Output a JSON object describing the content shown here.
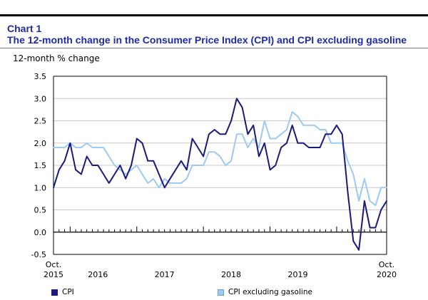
{
  "header": {
    "chart_number": "Chart 1",
    "title": "The 12-month change in the Consumer Price Index (CPI) and CPI excluding gasoline"
  },
  "chart_data": {
    "type": "line",
    "ylabel": "12-month % change",
    "ylim": [
      -0.5,
      3.5
    ],
    "yticks": [
      "3.5",
      "3.0",
      "2.5",
      "2.0",
      "1.5",
      "1.0",
      "0.5",
      "0.0",
      "-0.5"
    ],
    "ytick_values": [
      3.5,
      3.0,
      2.5,
      2.0,
      1.5,
      1.0,
      0.5,
      0.0,
      -0.5
    ],
    "x_start": "2015-10",
    "x_end": "2020-10",
    "xtick_labels": [
      {
        "month": "2015-10",
        "line1": "Oct.",
        "line2": "2015"
      },
      {
        "month": "2016-06",
        "line1": "",
        "line2": "2016"
      },
      {
        "month": "2017-06",
        "line1": "",
        "line2": "2017"
      },
      {
        "month": "2018-06",
        "line1": "",
        "line2": "2018"
      },
      {
        "month": "2019-06",
        "line1": "",
        "line2": "2019"
      },
      {
        "month": "2020-10",
        "line1": "Oct.",
        "line2": "2020"
      }
    ],
    "grid": "horizontal",
    "legend_position": "bottom",
    "series": [
      {
        "name": "CPI",
        "color": "#1a1a7e",
        "values": [
          1.0,
          1.4,
          1.6,
          2.0,
          1.4,
          1.3,
          1.7,
          1.5,
          1.5,
          1.3,
          1.1,
          1.3,
          1.5,
          1.2,
          1.5,
          2.1,
          2.0,
          1.6,
          1.6,
          1.3,
          1.0,
          1.2,
          1.4,
          1.6,
          1.4,
          2.1,
          1.9,
          1.7,
          2.2,
          2.3,
          2.2,
          2.2,
          2.5,
          3.0,
          2.8,
          2.2,
          2.4,
          1.7,
          2.0,
          1.4,
          1.5,
          1.9,
          2.0,
          2.4,
          2.0,
          2.0,
          1.9,
          1.9,
          1.9,
          2.2,
          2.2,
          2.4,
          2.2,
          0.9,
          -0.2,
          -0.4,
          0.7,
          0.1,
          0.1,
          0.5,
          0.7
        ]
      },
      {
        "name": "CPI excluding gasoline",
        "color": "#9dc9f5",
        "values": [
          1.9,
          1.9,
          1.9,
          2.0,
          1.9,
          1.9,
          2.0,
          1.9,
          1.9,
          1.9,
          1.7,
          1.5,
          1.4,
          1.3,
          1.4,
          1.5,
          1.3,
          1.1,
          1.2,
          1.0,
          1.2,
          1.1,
          1.1,
          1.1,
          1.2,
          1.5,
          1.5,
          1.5,
          1.8,
          1.8,
          1.7,
          1.5,
          1.6,
          2.2,
          2.2,
          1.9,
          2.1,
          1.9,
          2.5,
          2.1,
          2.1,
          2.2,
          2.3,
          2.7,
          2.6,
          2.4,
          2.4,
          2.4,
          2.3,
          2.3,
          2.0,
          2.0,
          2.0,
          1.6,
          1.3,
          0.7,
          1.2,
          0.7,
          0.6,
          1.0,
          1.0
        ]
      }
    ]
  }
}
